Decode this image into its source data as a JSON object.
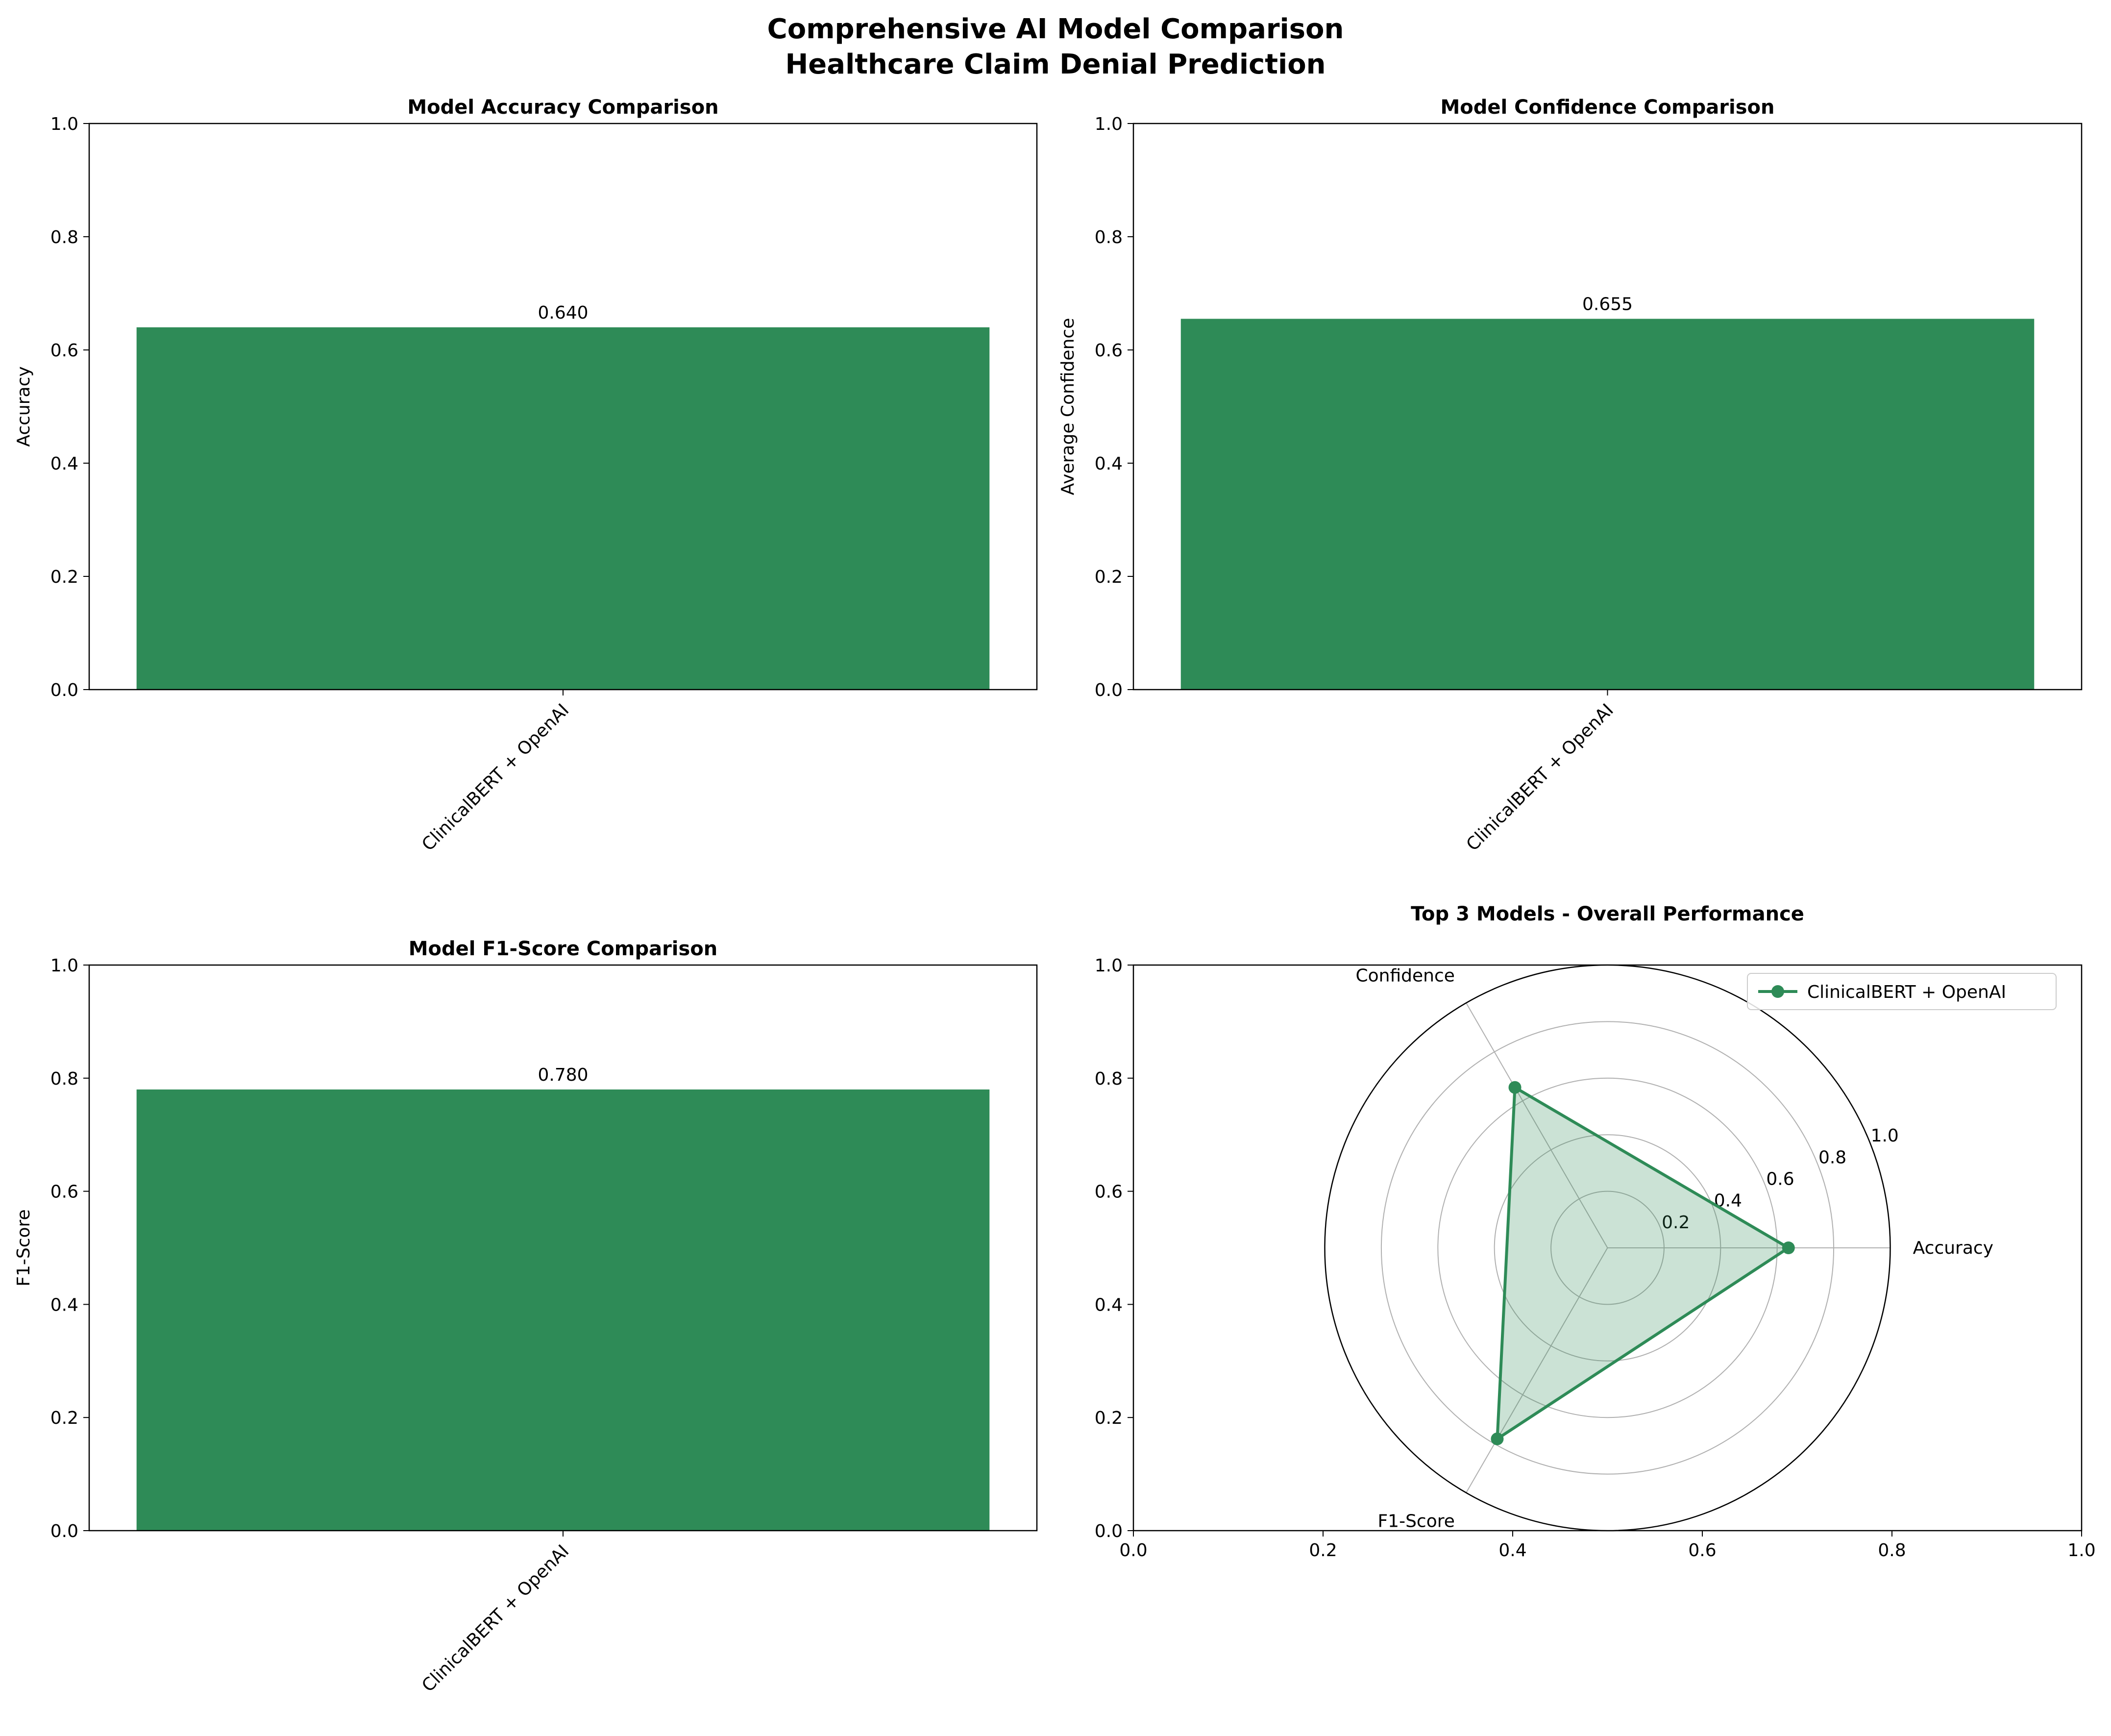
{
  "figure": {
    "title_line1": "Comprehensive AI Model Comparison",
    "title_line2": "Healthcare Claim Denial Prediction"
  },
  "colors": {
    "bar": "#2e8b57",
    "radar_line": "#2e8b57",
    "radar_fill": "#2e8b57",
    "grid": "#b0b0b0",
    "axis": "#000000"
  },
  "chart_data": [
    {
      "type": "bar",
      "title": "Model Accuracy Comparison",
      "categories": [
        "ClinicalBERT + OpenAI"
      ],
      "values": [
        0.64
      ],
      "value_labels": [
        "0.640"
      ],
      "xlabel": "",
      "ylabel": "Accuracy",
      "ylim": [
        0,
        1.0
      ],
      "yticks": [
        "0.0",
        "0.2",
        "0.4",
        "0.6",
        "0.8",
        "1.0"
      ]
    },
    {
      "type": "bar",
      "title": "Model Confidence Comparison",
      "categories": [
        "ClinicalBERT + OpenAI"
      ],
      "values": [
        0.655
      ],
      "value_labels": [
        "0.655"
      ],
      "xlabel": "",
      "ylabel": "Average Confidence",
      "ylim": [
        0,
        1.0
      ],
      "yticks": [
        "0.0",
        "0.2",
        "0.4",
        "0.6",
        "0.8",
        "1.0"
      ]
    },
    {
      "type": "bar",
      "title": "Model F1-Score Comparison",
      "categories": [
        "ClinicalBERT + OpenAI"
      ],
      "values": [
        0.78
      ],
      "value_labels": [
        "0.780"
      ],
      "xlabel": "",
      "ylabel": "F1-Score",
      "ylim": [
        0,
        1.0
      ],
      "yticks": [
        "0.0",
        "0.2",
        "0.4",
        "0.6",
        "0.8",
        "1.0"
      ]
    },
    {
      "type": "radar",
      "title": "Top 3 Models - Overall Performance",
      "axes": [
        "Accuracy",
        "Confidence",
        "F1-Score"
      ],
      "series": [
        {
          "name": "ClinicalBERT + OpenAI",
          "values": [
            0.64,
            0.655,
            0.78
          ]
        }
      ],
      "rlim": [
        0,
        1.0
      ],
      "rticks": [
        "0.2",
        "0.4",
        "0.6",
        "0.8",
        "1.0"
      ],
      "legend": "top-right",
      "background_axis": {
        "xlim": [
          0,
          1.0
        ],
        "ylim": [
          0,
          1.0
        ],
        "xticks": [
          "0.0",
          "0.2",
          "0.4",
          "0.6",
          "0.8",
          "1.0"
        ],
        "yticks": [
          "0.0",
          "0.2",
          "0.4",
          "0.6",
          "0.8",
          "1.0"
        ]
      }
    }
  ]
}
